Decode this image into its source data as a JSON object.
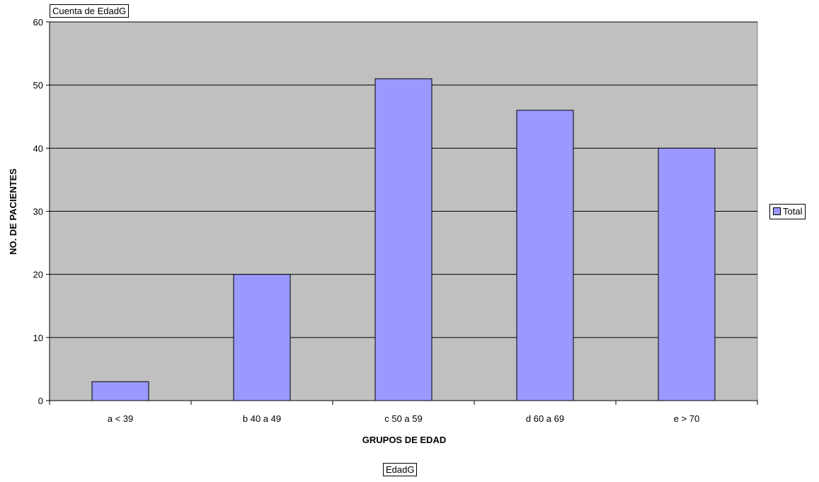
{
  "chart_data": {
    "type": "bar",
    "categories": [
      "a < 39",
      "b 40 a 49",
      "c 50 a 59",
      "d 60 a 69",
      "e > 70"
    ],
    "series": [
      {
        "name": "Total",
        "values": [
          3,
          20,
          51,
          46,
          40
        ],
        "color": "#9999ff"
      }
    ],
    "xlabel": "GRUPOS DE EDAD",
    "ylabel": "NO. DE PACIENTES",
    "ylim": [
      0,
      60
    ],
    "yticks": [
      0,
      10,
      20,
      30,
      40,
      50,
      60
    ],
    "grid": true,
    "legend_position": "right",
    "plot_background": "#c0c0c0"
  },
  "pivot": {
    "data_field": "Cuenta de EdadG",
    "axis_field": "EdadG"
  }
}
